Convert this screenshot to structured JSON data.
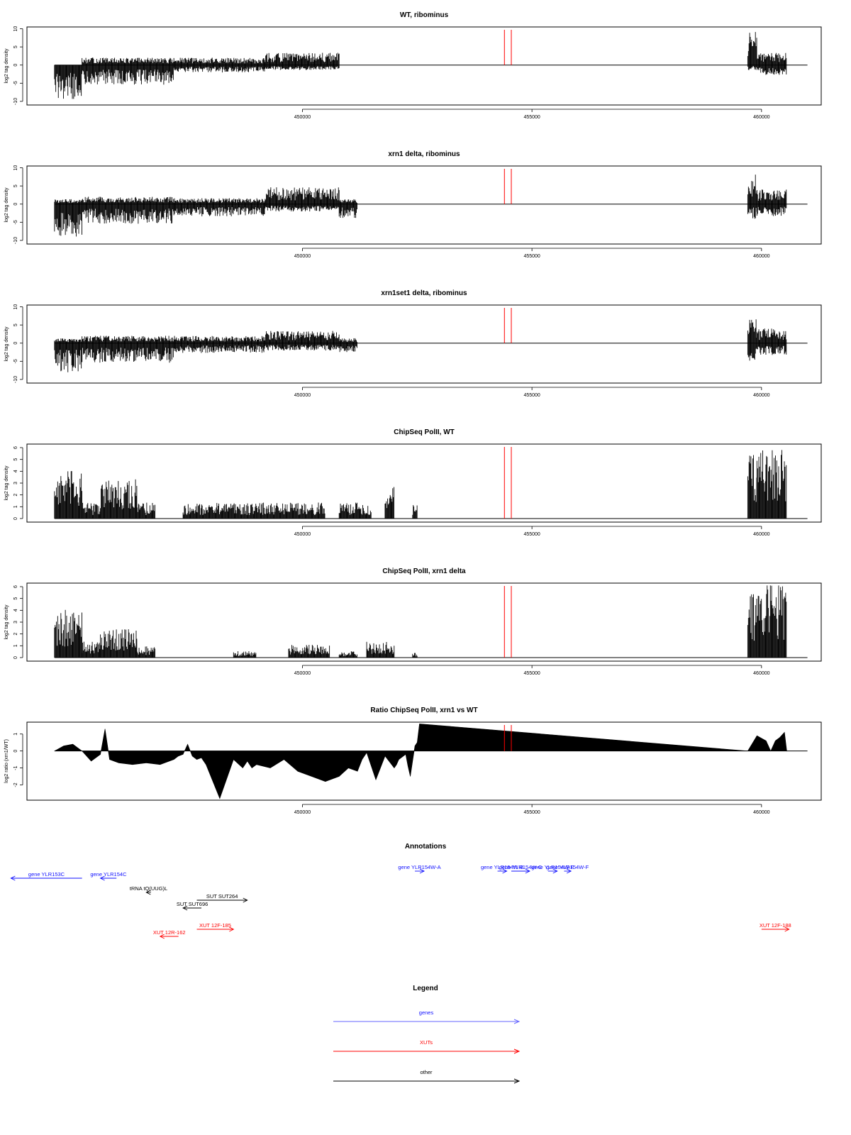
{
  "chart_data": [
    {
      "type": "bar",
      "title": "WT, ribominus",
      "ylabel": "log2 tag density",
      "ylim": [
        -11,
        10.5
      ],
      "yticks": [
        -10,
        -5,
        0,
        5,
        10
      ],
      "xlim": [
        444000,
        461300
      ],
      "xticks": [
        450000,
        455000,
        460000
      ],
      "highlight_x": [
        454400,
        454550
      ],
      "segments": [
        {
          "from": 444600,
          "to": 445200,
          "positive": 0,
          "negative": -7
        },
        {
          "from": 445200,
          "to": 447200,
          "positive": 1.5,
          "negative": -4
        },
        {
          "from": 447200,
          "to": 449200,
          "positive": 1.5,
          "negative": -1.5
        },
        {
          "from": 449200,
          "to": 450800,
          "positive": 2.5,
          "negative": -1
        },
        {
          "from": 459700,
          "to": 459900,
          "positive": 7,
          "negative": -1
        },
        {
          "from": 459900,
          "to": 460550,
          "positive": 2.5,
          "negative": -2
        }
      ]
    },
    {
      "type": "bar",
      "title": "xrn1 delta, ribominus",
      "ylabel": "log2 tag density",
      "ylim": [
        -11,
        10.5
      ],
      "yticks": [
        -10,
        -5,
        0,
        5,
        10
      ],
      "xlim": [
        444000,
        461300
      ],
      "xticks": [
        450000,
        455000,
        460000
      ],
      "highlight_x": [
        454400,
        454550
      ],
      "segments": [
        {
          "from": 444600,
          "to": 445200,
          "positive": 1,
          "negative": -7
        },
        {
          "from": 445200,
          "to": 447200,
          "positive": 1.5,
          "negative": -4
        },
        {
          "from": 447200,
          "to": 449200,
          "positive": 1.2,
          "negative": -2.5
        },
        {
          "from": 449200,
          "to": 450800,
          "positive": 3.5,
          "negative": -1.5
        },
        {
          "from": 450800,
          "to": 451200,
          "positive": 1,
          "negative": -3
        },
        {
          "from": 459700,
          "to": 459900,
          "positive": 7,
          "negative": -3
        },
        {
          "from": 459900,
          "to": 460550,
          "positive": 3,
          "negative": -2.5
        }
      ]
    },
    {
      "type": "bar",
      "title": "xrn1set1 delta, ribominus",
      "ylabel": "log2 tag density",
      "ylim": [
        -11,
        10.5
      ],
      "yticks": [
        -10,
        -5,
        0,
        5,
        10
      ],
      "xlim": [
        444000,
        461300
      ],
      "xticks": [
        450000,
        455000,
        460000
      ],
      "highlight_x": [
        454400,
        454550
      ],
      "segments": [
        {
          "from": 444600,
          "to": 445200,
          "positive": 1,
          "negative": -6
        },
        {
          "from": 445200,
          "to": 447200,
          "positive": 1.5,
          "negative": -4
        },
        {
          "from": 447200,
          "to": 449200,
          "positive": 1.5,
          "negative": -2
        },
        {
          "from": 449200,
          "to": 450800,
          "positive": 2.5,
          "negative": -1.5
        },
        {
          "from": 450800,
          "to": 451200,
          "positive": 1,
          "negative": -2
        },
        {
          "from": 459700,
          "to": 459900,
          "positive": 5,
          "negative": -4
        },
        {
          "from": 459900,
          "to": 460550,
          "positive": 3,
          "negative": -2.5
        }
      ]
    },
    {
      "type": "bar",
      "title": "ChipSeq PolII, WT",
      "ylabel": "log2 tag density",
      "ylim": [
        -0.3,
        6.3
      ],
      "yticks": [
        0,
        1,
        2,
        3,
        4,
        5,
        6
      ],
      "xlim": [
        444000,
        461300
      ],
      "xticks": [
        450000,
        455000,
        460000
      ],
      "highlight_x": [
        454400,
        454550
      ],
      "segments": [
        {
          "from": 444600,
          "to": 445200,
          "positive": 3,
          "negative": 0
        },
        {
          "from": 445200,
          "to": 445600,
          "positive": 1,
          "negative": 0
        },
        {
          "from": 445600,
          "to": 446400,
          "positive": 2.5,
          "negative": 0
        },
        {
          "from": 446400,
          "to": 446800,
          "positive": 1,
          "negative": 0
        },
        {
          "from": 447400,
          "to": 449000,
          "positive": 1,
          "negative": 0
        },
        {
          "from": 449000,
          "to": 450500,
          "positive": 1,
          "negative": 0
        },
        {
          "from": 450800,
          "to": 451500,
          "positive": 1,
          "negative": 0
        },
        {
          "from": 451800,
          "to": 452000,
          "positive": 2,
          "negative": 0
        },
        {
          "from": 452400,
          "to": 452500,
          "positive": 1,
          "negative": 0
        },
        {
          "from": 459700,
          "to": 459900,
          "positive": 4,
          "negative": 0
        },
        {
          "from": 459900,
          "to": 460550,
          "positive": 4.5,
          "negative": 0
        }
      ]
    },
    {
      "type": "bar",
      "title": "ChipSeq PolII, xrn1 delta",
      "ylabel": "log2 tag density",
      "ylim": [
        -0.3,
        6.3
      ],
      "yticks": [
        0,
        1,
        2,
        3,
        4,
        5,
        6
      ],
      "xlim": [
        444000,
        461300
      ],
      "xticks": [
        450000,
        455000,
        460000
      ],
      "highlight_x": [
        454400,
        454550
      ],
      "segments": [
        {
          "from": 444600,
          "to": 445200,
          "positive": 3,
          "negative": 0
        },
        {
          "from": 445200,
          "to": 445600,
          "positive": 1,
          "negative": 0
        },
        {
          "from": 445600,
          "to": 446400,
          "positive": 1.8,
          "negative": 0
        },
        {
          "from": 446400,
          "to": 446800,
          "positive": 0.7,
          "negative": 0
        },
        {
          "from": 448500,
          "to": 449000,
          "positive": 0.4,
          "negative": 0
        },
        {
          "from": 449700,
          "to": 450600,
          "positive": 0.8,
          "negative": 0
        },
        {
          "from": 450800,
          "to": 451200,
          "positive": 0.4,
          "negative": 0
        },
        {
          "from": 451400,
          "to": 452000,
          "positive": 1,
          "negative": 0
        },
        {
          "from": 452400,
          "to": 452500,
          "positive": 0.3,
          "negative": 0
        },
        {
          "from": 459700,
          "to": 459900,
          "positive": 4.5,
          "negative": 0
        },
        {
          "from": 459900,
          "to": 460550,
          "positive": 4.7,
          "negative": 0
        }
      ]
    },
    {
      "type": "area",
      "title": "Ratio ChipSeq PolII, xrn1 vs WT",
      "ylabel": "log2 ratio (xrn1/WT)",
      "ylim": [
        -2.9,
        1.7
      ],
      "yticks": [
        -2,
        -1,
        0,
        1
      ],
      "xlim": [
        444000,
        461300
      ],
      "xticks": [
        450000,
        455000,
        460000
      ],
      "highlight_x": [
        454400,
        454550
      ],
      "x": [
        444600,
        444800,
        445000,
        445200,
        445400,
        445600,
        445700,
        445800,
        446000,
        446300,
        446600,
        446900,
        447200,
        447300,
        447400,
        447500,
        447600,
        447700,
        447800,
        447900,
        448200,
        448500,
        448700,
        448800,
        448900,
        449000,
        449300,
        449600,
        449900,
        450200,
        450500,
        450800,
        451000,
        451200,
        451300,
        451400,
        451600,
        451800,
        452000,
        452050,
        452100,
        452250,
        452300,
        452350,
        452400,
        452450,
        452500,
        452550,
        459700,
        459900,
        460100,
        460200,
        460300,
        460400,
        460500,
        460550
      ],
      "y": [
        0,
        0.3,
        0.4,
        0,
        -0.6,
        -0.2,
        1.3,
        -0.5,
        -0.7,
        -0.8,
        -0.7,
        -0.8,
        -0.5,
        -0.3,
        -0.2,
        0.4,
        -0.3,
        -0.5,
        -0.4,
        -0.8,
        -2.8,
        -0.5,
        -1.0,
        -0.6,
        -1.0,
        -0.8,
        -1.0,
        -0.5,
        -1.2,
        -1.5,
        -1.8,
        -1.5,
        -1.0,
        -1.2,
        -0.5,
        -0.1,
        -1.7,
        -0.3,
        -1.0,
        -0.8,
        -0.5,
        -0.2,
        -0.9,
        -1.5,
        -0.6,
        0.3,
        0.5,
        1.6,
        0,
        0.9,
        0.6,
        0,
        0.6,
        0.8,
        1.1,
        0
      ]
    }
  ],
  "annotations": {
    "title": "Annotations",
    "items": [
      {
        "label": "gene YLR153C",
        "color": "#1010ff",
        "x_start": 443650,
        "x_end": 445200,
        "dir": "left"
      },
      {
        "label": "gene YLR154C",
        "color": "#1010ff",
        "x_start": 445600,
        "x_end": 445950,
        "dir": "left"
      },
      {
        "label": "tRNA tQ(UUG)L",
        "color": "#000000",
        "x_start": 446600,
        "x_end": 446700,
        "dir": "left"
      },
      {
        "label": "SUT SUT696",
        "color": "#000000",
        "x_start": 447400,
        "x_end": 447800,
        "dir": "left"
      },
      {
        "label": "SUT SUT264",
        "color": "#000000",
        "x_start": 447700,
        "x_end": 448800,
        "dir": "right"
      },
      {
        "label": "gene YLR154W-A",
        "color": "#1010ff",
        "x_start": 452450,
        "x_end": 452650,
        "dir": "right"
      },
      {
        "label": "gene YLR154W-B",
        "color": "#1010ff",
        "x_start": 454250,
        "x_end": 454450,
        "dir": "right"
      },
      {
        "label": "gene YLR154W-C",
        "color": "#1010ff",
        "x_start": 454550,
        "x_end": 454950,
        "dir": "right"
      },
      {
        "label": "gene YLR154W-E",
        "color": "#1010ff",
        "x_start": 455350,
        "x_end": 455550,
        "dir": "right"
      },
      {
        "label": "gene YLR154W-F",
        "color": "#1010ff",
        "x_start": 455700,
        "x_end": 455850,
        "dir": "right"
      },
      {
        "label": "XUT 12F-185",
        "color": "#ff0000",
        "x_start": 447700,
        "x_end": 448500,
        "dir": "right"
      },
      {
        "label": "XUT 12R-162",
        "color": "#ff0000",
        "x_start": 446900,
        "x_end": 447300,
        "dir": "left"
      },
      {
        "label": "XUT 12F-188",
        "color": "#ff0000",
        "x_start": 460000,
        "x_end": 460600,
        "dir": "right"
      }
    ]
  },
  "legend": {
    "title": "Legend",
    "items": [
      {
        "label": "genes",
        "color": "#6666ff"
      },
      {
        "label": "XUTs",
        "color": "#ff0000"
      },
      {
        "label": "other",
        "color": "#000000"
      }
    ]
  }
}
